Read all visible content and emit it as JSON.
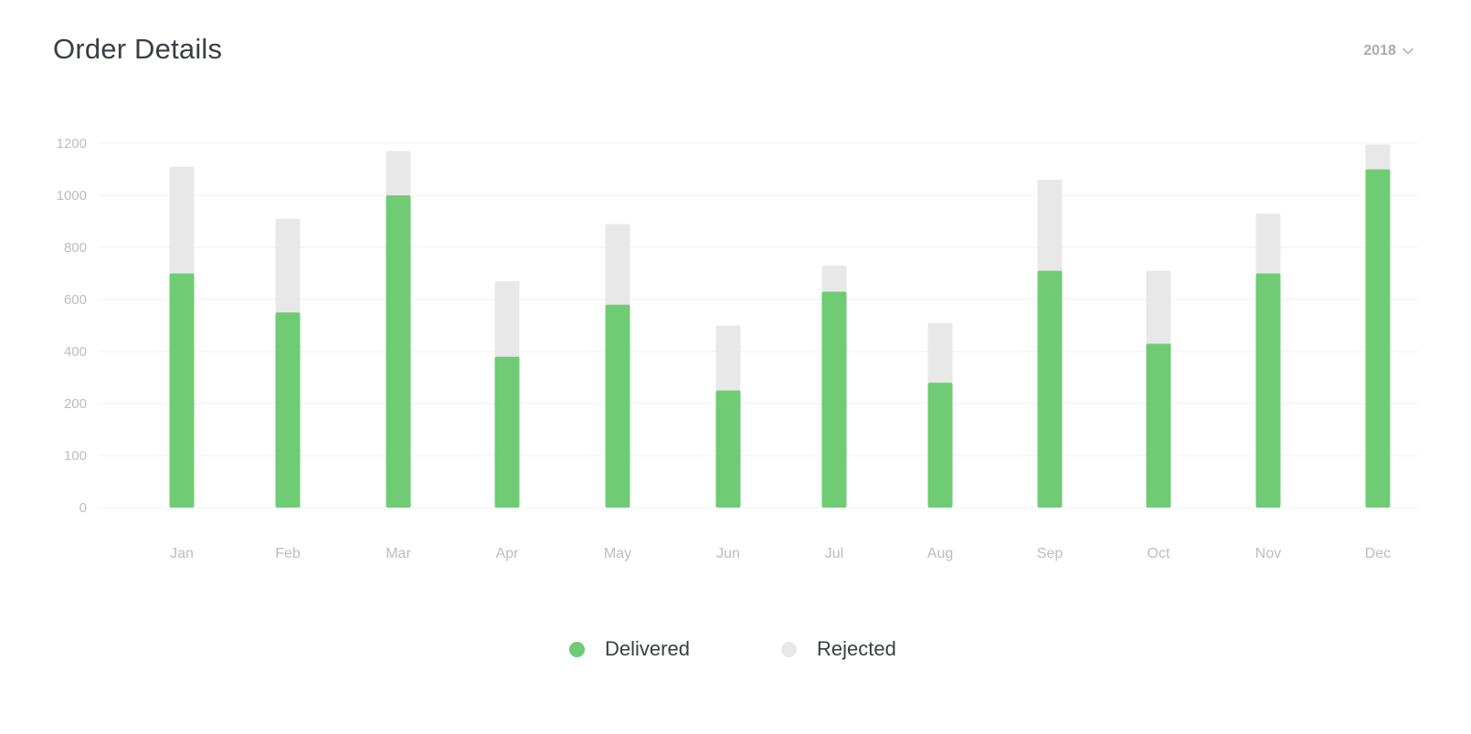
{
  "header": {
    "title": "Order Details",
    "year_selected": "2018",
    "chevron_icon": "chevron-down-icon"
  },
  "colors": {
    "delivered": "#6fcb74",
    "rejected": "#e8e8e8",
    "grid": "#f1f1f1",
    "tick_text": "#bcbdbf"
  },
  "chart_data": {
    "type": "bar",
    "stacked": true,
    "categories": [
      "Jan",
      "Feb",
      "Mar",
      "Apr",
      "May",
      "Jun",
      "Jul",
      "Aug",
      "Sep",
      "Oct",
      "Nov",
      "Dec"
    ],
    "series": [
      {
        "name": "Delivered",
        "values": [
          700,
          550,
          1000,
          380,
          580,
          250,
          630,
          280,
          710,
          430,
          700,
          1100
        ]
      },
      {
        "name": "Rejected",
        "values": [
          410,
          360,
          170,
          290,
          310,
          250,
          100,
          230,
          350,
          280,
          230,
          95
        ]
      }
    ],
    "y_ticks": [
      {
        "label": "0",
        "value": 0
      },
      {
        "label": "100",
        "value": 100
      },
      {
        "label": "200",
        "value": 200
      },
      {
        "label": "400",
        "value": 400
      },
      {
        "label": "600",
        "value": 600
      },
      {
        "label": "800",
        "value": 800
      },
      {
        "label": "1000",
        "value": 1000
      },
      {
        "label": "1200",
        "value": 1200
      }
    ],
    "title": "Order Details",
    "xlabel": "",
    "ylabel": "",
    "ylim": [
      0,
      1200
    ],
    "grid": true,
    "legend_position": "bottom-center"
  },
  "legend": {
    "items": [
      {
        "label": "Delivered",
        "color": "#6fcb74"
      },
      {
        "label": "Rejected",
        "color": "#e8e8e8"
      }
    ]
  }
}
